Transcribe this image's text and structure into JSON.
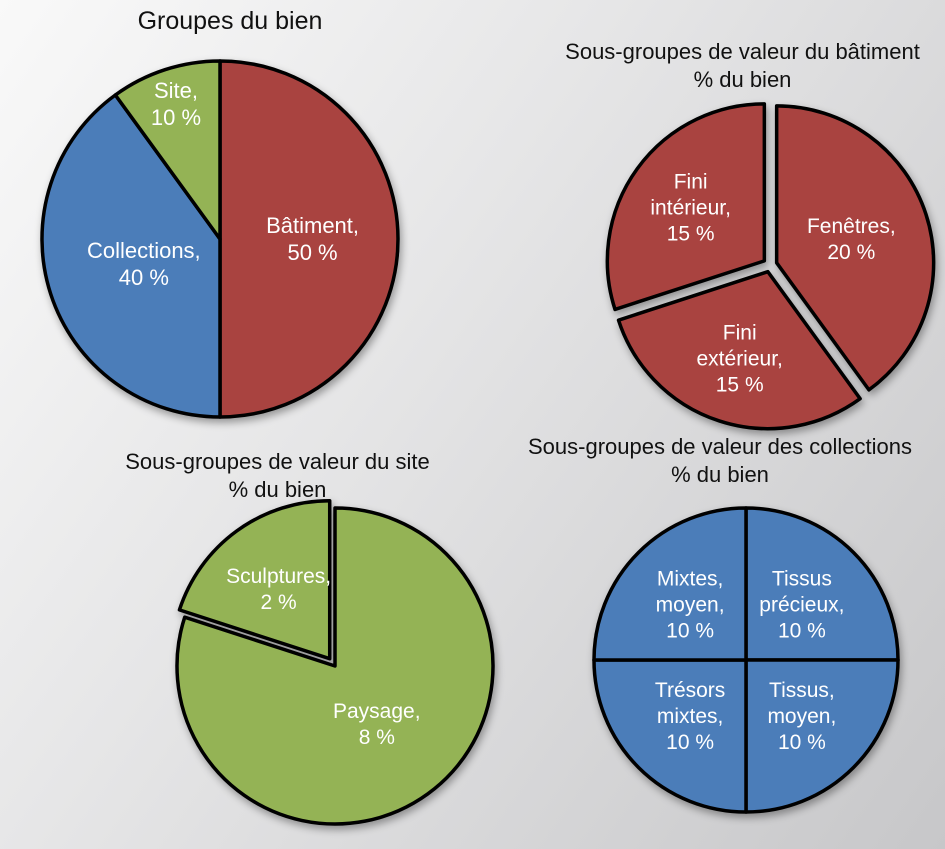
{
  "page": {
    "description": "Quatre graphiques circulaires de répartition de la valeur du bien",
    "background_gradient": [
      "#f9f9f9",
      "#c7c7c9"
    ],
    "title_color": "#111111",
    "label_color": "#ffffff",
    "outline_color": "#000000"
  },
  "chart_data": [
    {
      "type": "pie",
      "title": "Groupes du bien",
      "title_lines": [
        "Groupes du bien"
      ],
      "units": "% du bien",
      "start_angle_deg": 0,
      "direction": "clockwise",
      "legend": "none",
      "label_font_size": 22,
      "label_line_height": 27,
      "slices": [
        {
          "name": "Bâtiment",
          "value": 50,
          "color": "#A94340",
          "label_lines": [
            "Bâtiment,",
            "50 %"
          ],
          "label_r": 0.52,
          "explode": 0
        },
        {
          "name": "Collections",
          "value": 40,
          "color": "#4B7DB9",
          "label_lines": [
            "Collections,",
            "40 %"
          ],
          "label_r": 0.45,
          "explode": 0
        },
        {
          "name": "Site",
          "value": 10,
          "color": "#94B355",
          "label_lines": [
            "Site,",
            "10 %"
          ],
          "label_r": 0.8,
          "explode": 0
        }
      ]
    },
    {
      "type": "pie",
      "title": "Sous-groupes de valeur du bâtiment % du bien",
      "title_lines": [
        "Sous-groupes de valeur du bâtiment",
        "% du bien"
      ],
      "units": "% du bien",
      "start_angle_deg": 0,
      "direction": "clockwise",
      "legend": "none",
      "label_font_size": 21,
      "label_line_height": 26,
      "slices": [
        {
          "name": "Fenêtres",
          "value": 20,
          "color": "#A94340",
          "label_lines": [
            "Fenêtres,",
            "20 %"
          ],
          "label_r": 0.5,
          "explode": 7
        },
        {
          "name": "Fini extérieur",
          "value": 15,
          "color": "#A94340",
          "label_lines": [
            "Fini",
            "extérieur,",
            "15 %"
          ],
          "label_r": 0.58,
          "explode": 7
        },
        {
          "name": "Fini intérieur",
          "value": 15,
          "color": "#A94340",
          "label_lines": [
            "Fini",
            "intérieur,",
            "15 %"
          ],
          "label_r": 0.58,
          "explode": 7
        }
      ]
    },
    {
      "type": "pie",
      "title": "Sous-groupes de valeur du site % du bien",
      "title_lines": [
        "Sous-groupes de valeur du site",
        "% du bien"
      ],
      "units": "% du bien",
      "start_angle_deg": 0,
      "direction": "clockwise",
      "legend": "none",
      "label_font_size": 21,
      "label_line_height": 26,
      "slices": [
        {
          "name": "Paysage",
          "value": 8,
          "color": "#94B355",
          "label_lines": [
            "Paysage,",
            "8 %"
          ],
          "label_r": 0.45,
          "explode": 0
        },
        {
          "name": "Sculptures",
          "value": 2,
          "color": "#94B355",
          "label_lines": [
            "Sculptures,",
            "2 %"
          ],
          "label_r": 0.55,
          "explode": 9
        }
      ]
    },
    {
      "type": "pie",
      "title": "Sous-groupes de valeur des collections % du bien",
      "title_lines": [
        "Sous-groupes de valeur des collections",
        "% du bien"
      ],
      "units": "% du bien",
      "start_angle_deg": 0,
      "direction": "clockwise",
      "legend": "none",
      "label_font_size": 21,
      "label_line_height": 26,
      "slices": [
        {
          "name": "Tissus précieux",
          "value": 10,
          "color": "#4B7DB9",
          "label_lines": [
            "Tissus",
            "précieux,",
            "10 %"
          ],
          "label_r": 0.52,
          "explode": 0
        },
        {
          "name": "Tissus, moyen",
          "value": 10,
          "color": "#4B7DB9",
          "label_lines": [
            "Tissus,",
            "moyen,",
            "10 %"
          ],
          "label_r": 0.52,
          "explode": 0
        },
        {
          "name": "Trésors mixtes",
          "value": 10,
          "color": "#4B7DB9",
          "label_lines": [
            "Trésors",
            "mixtes,",
            "10 %"
          ],
          "label_r": 0.52,
          "explode": 0
        },
        {
          "name": "Mixtes, moyen",
          "value": 10,
          "color": "#4B7DB9",
          "label_lines": [
            "Mixtes,",
            "moyen,",
            "10 %"
          ],
          "label_r": 0.52,
          "explode": 0
        }
      ]
    }
  ]
}
